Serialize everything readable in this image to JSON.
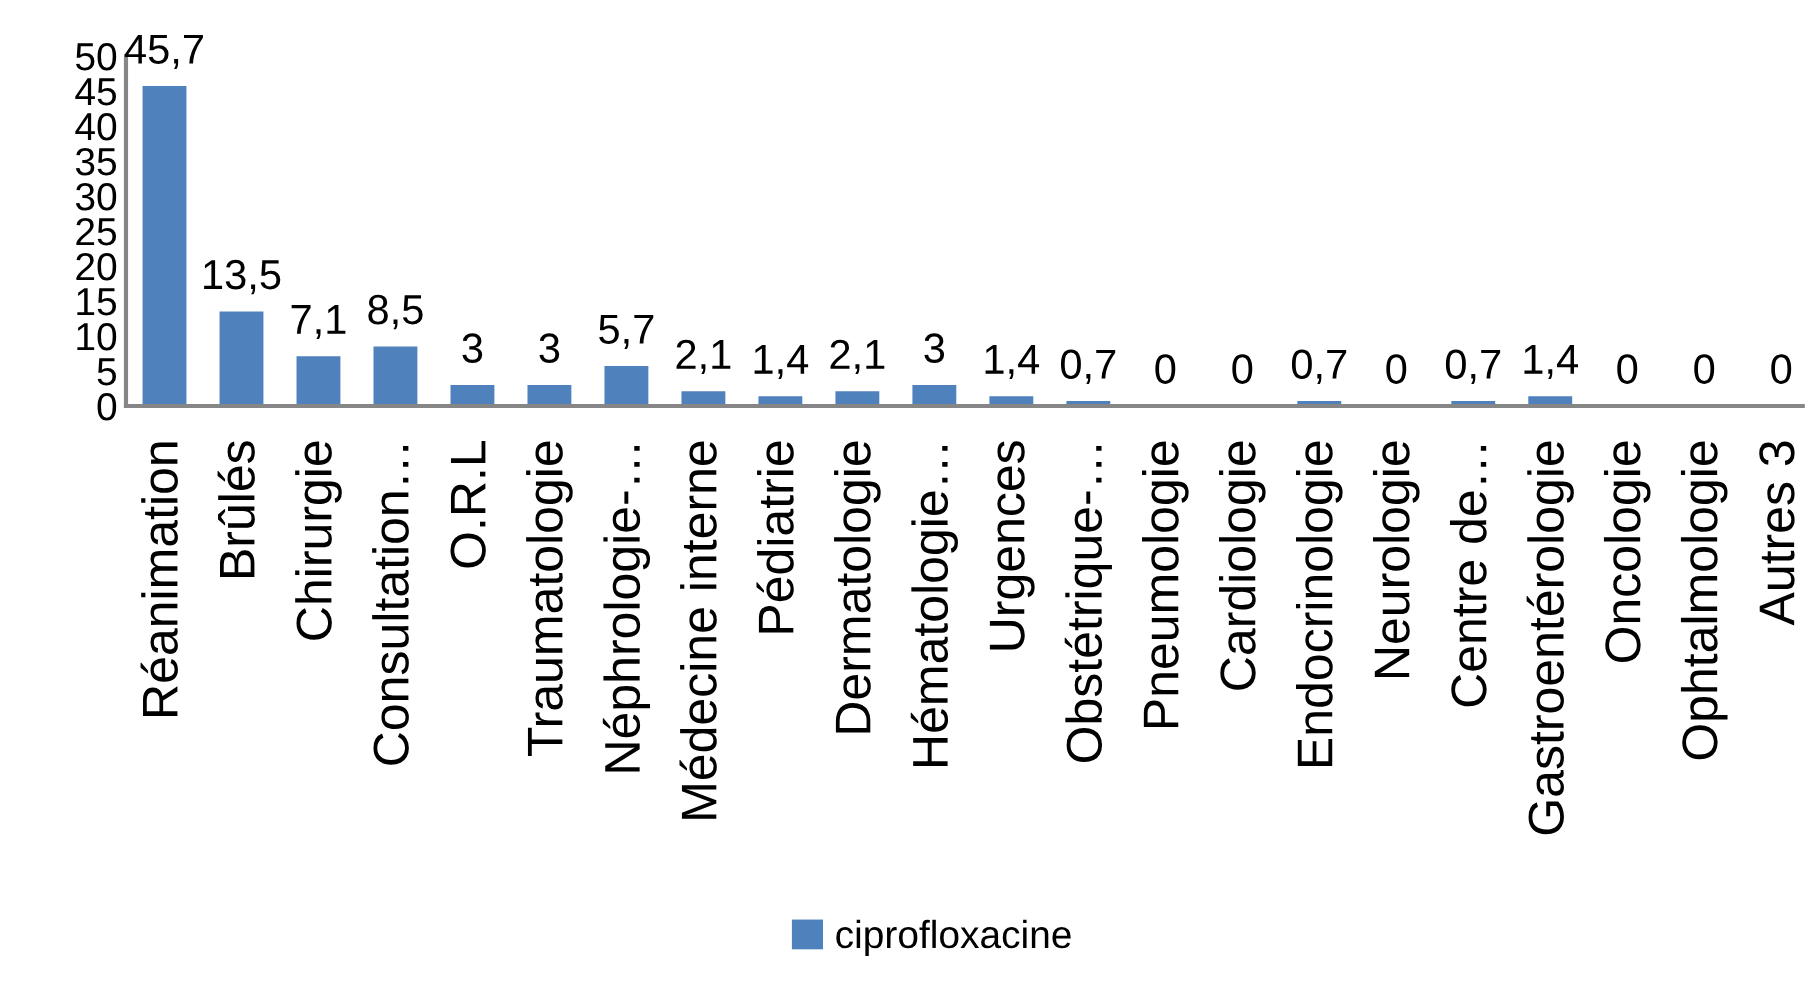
{
  "chart_data": {
    "type": "bar",
    "categories": [
      "Réanimation",
      "Brûlés",
      "Chirurgie",
      "Consultation…",
      "O.R.L",
      "Traumatologie",
      "Néphrologie-…",
      "Médecine interne",
      "Pédiatrie",
      "Dermatologie",
      "Hématologie…",
      "Urgences",
      "Obstétrique-…",
      "Pneumologie",
      "Cardiologie",
      "Endocrinologie",
      "Neurologie",
      "Centre de…",
      "Gastroentérologie",
      "Oncologie",
      "Ophtalmologie",
      "Autres 3"
    ],
    "series": [
      {
        "name": "ciprofloxacine",
        "color": "#4f81bd",
        "values": [
          45.7,
          13.5,
          7.1,
          8.5,
          3,
          3,
          5.7,
          2.1,
          1.4,
          2.1,
          3,
          1.4,
          0.7,
          0,
          0,
          0.7,
          0,
          0.7,
          1.4,
          0,
          0,
          0
        ],
        "value_labels": [
          "45,7",
          "13,5",
          "7,1",
          "8,5",
          "3",
          "3",
          "5,7",
          "2,1",
          "1,4",
          "2,1",
          "3",
          "1,4",
          "0,7",
          "0",
          "0",
          "0,7",
          "0",
          "0,7",
          "1,4",
          "0",
          "0",
          "0"
        ]
      }
    ],
    "ylim": [
      0,
      50
    ],
    "yticks": [
      0,
      5,
      10,
      15,
      20,
      25,
      30,
      35,
      40,
      45,
      50
    ],
    "grid": false,
    "legend": "bottom"
  }
}
